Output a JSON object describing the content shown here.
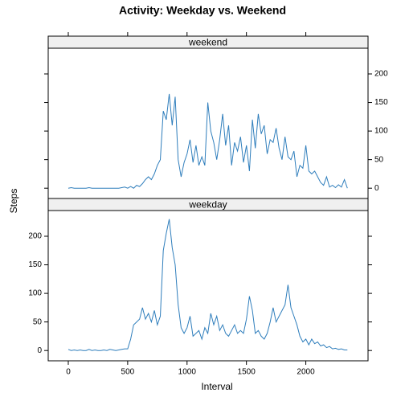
{
  "chart_data": {
    "type": "line",
    "title": "Activity: Weekday vs. Weekend",
    "x_label": "Interval",
    "y_label": "Steps",
    "x": [
      0,
      25,
      50,
      75,
      100,
      125,
      150,
      175,
      200,
      225,
      250,
      275,
      300,
      325,
      350,
      375,
      400,
      425,
      450,
      475,
      500,
      525,
      550,
      575,
      600,
      625,
      650,
      675,
      700,
      725,
      750,
      775,
      800,
      825,
      850,
      875,
      900,
      925,
      950,
      975,
      1000,
      1025,
      1050,
      1075,
      1100,
      1125,
      1150,
      1175,
      1200,
      1225,
      1250,
      1275,
      1300,
      1325,
      1350,
      1375,
      1400,
      1425,
      1450,
      1475,
      1500,
      1525,
      1550,
      1575,
      1600,
      1625,
      1650,
      1675,
      1700,
      1725,
      1750,
      1775,
      1800,
      1825,
      1850,
      1875,
      1900,
      1925,
      1950,
      1975,
      2000,
      2025,
      2050,
      2075,
      2100,
      2125,
      2150,
      2175,
      2200,
      2225,
      2250,
      2275,
      2300,
      2325,
      2350
    ],
    "series": [
      {
        "name": "weekend",
        "color": "#2f7ebc",
        "values": [
          0,
          1,
          0,
          0,
          0,
          0,
          0,
          1,
          0,
          0,
          0,
          0,
          0,
          0,
          0,
          0,
          0,
          0,
          1,
          2,
          0,
          3,
          0,
          5,
          3,
          8,
          15,
          20,
          15,
          25,
          40,
          50,
          135,
          120,
          165,
          110,
          160,
          50,
          20,
          45,
          60,
          85,
          45,
          75,
          40,
          55,
          40,
          150,
          100,
          80,
          50,
          85,
          130,
          75,
          110,
          40,
          80,
          65,
          90,
          45,
          75,
          30,
          120,
          70,
          130,
          95,
          110,
          60,
          85,
          80,
          105,
          70,
          50,
          90,
          55,
          50,
          65,
          20,
          40,
          35,
          75,
          30,
          25,
          30,
          20,
          10,
          5,
          20,
          2,
          5,
          1,
          6,
          2,
          15,
          0
        ]
      },
      {
        "name": "weekday",
        "color": "#2f7ebc",
        "values": [
          2,
          0,
          1,
          0,
          1,
          0,
          0,
          2,
          0,
          1,
          0,
          0,
          1,
          0,
          2,
          1,
          0,
          1,
          2,
          3,
          3,
          20,
          45,
          50,
          55,
          75,
          55,
          65,
          50,
          70,
          45,
          60,
          175,
          205,
          230,
          180,
          150,
          80,
          40,
          30,
          40,
          60,
          25,
          30,
          35,
          20,
          40,
          30,
          65,
          45,
          60,
          35,
          45,
          30,
          25,
          35,
          45,
          30,
          35,
          30,
          55,
          95,
          70,
          30,
          35,
          25,
          20,
          30,
          50,
          75,
          50,
          60,
          70,
          80,
          115,
          75,
          60,
          45,
          25,
          15,
          20,
          10,
          20,
          12,
          15,
          8,
          10,
          5,
          7,
          3,
          4,
          2,
          3,
          1,
          1
        ]
      }
    ],
    "xlim": [
      -169,
      2524
    ],
    "xticks": [
      0,
      500,
      1000,
      1500,
      2000
    ],
    "ylim": [
      -18,
      245
    ],
    "yticks": [
      0,
      50,
      100,
      150,
      200
    ]
  }
}
